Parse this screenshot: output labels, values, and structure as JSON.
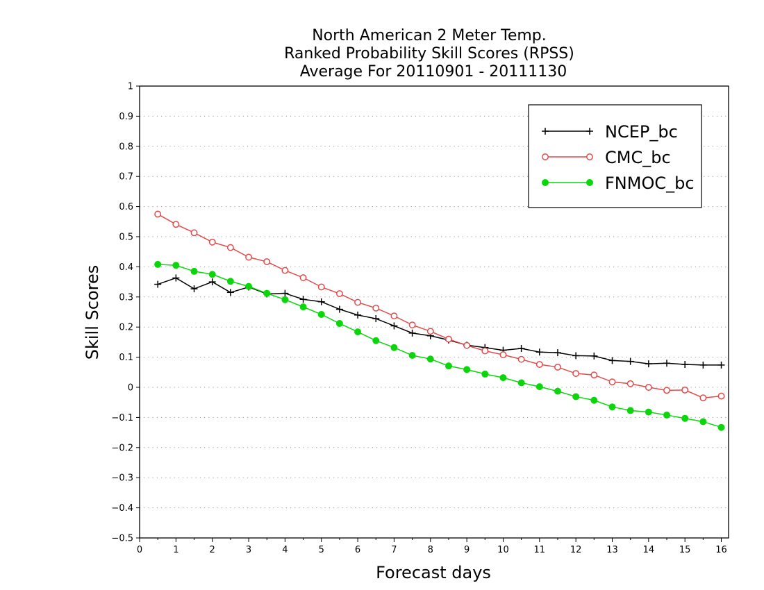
{
  "chart_data": {
    "type": "line",
    "title_lines": [
      "North American 2 Meter Temp.",
      "Ranked Probability Skill Scores (RPSS)",
      "Average For 20110901 - 20111130"
    ],
    "xlabel": "Forecast days",
    "ylabel": "Skill Scores",
    "xlim": [
      0,
      16.2
    ],
    "ylim": [
      -0.5,
      1
    ],
    "x_ticks": [
      0,
      1,
      2,
      3,
      4,
      5,
      6,
      7,
      8,
      9,
      10,
      11,
      12,
      13,
      14,
      15,
      16
    ],
    "y_ticks": [
      -0.5,
      -0.4,
      -0.3,
      -0.2,
      -0.1,
      0,
      0.1,
      0.2,
      0.3,
      0.4,
      0.5,
      0.6,
      0.7,
      0.8,
      0.9,
      1
    ],
    "y_tick_labels": [
      "−0.5",
      "−0.4",
      "−0.3",
      "−0.2",
      "−0.1",
      "0",
      "0.1",
      "0.2",
      "0.3",
      "0.4",
      "0.5",
      "0.6",
      "0.7",
      "0.8",
      "0.9",
      "1"
    ],
    "grid": "horizontal dotted",
    "legend_position": "top-right",
    "x": [
      0.5,
      1,
      1.5,
      2,
      2.5,
      3,
      3.5,
      4,
      4.5,
      5,
      5.5,
      6,
      6.5,
      7,
      7.5,
      8,
      8.5,
      9,
      9.5,
      10,
      10.5,
      11,
      11.5,
      12,
      12.5,
      13,
      13.5,
      14,
      14.5,
      15,
      15.5,
      16
    ],
    "series": [
      {
        "name": "NCEP_bc",
        "color": "#000000",
        "marker": "plus",
        "values": [
          0.342,
          0.363,
          0.327,
          0.35,
          0.315,
          0.333,
          0.31,
          0.312,
          0.292,
          0.284,
          0.259,
          0.24,
          0.228,
          0.204,
          0.18,
          0.171,
          0.157,
          0.14,
          0.132,
          0.123,
          0.129,
          0.117,
          0.115,
          0.105,
          0.104,
          0.089,
          0.086,
          0.078,
          0.08,
          0.076,
          0.074,
          0.074
        ]
      },
      {
        "name": "CMC_bc",
        "color": "#e34a4a",
        "marker": "open-circle",
        "values": [
          0.575,
          0.541,
          0.513,
          0.482,
          0.464,
          0.432,
          0.417,
          0.388,
          0.364,
          0.333,
          0.311,
          0.282,
          0.263,
          0.237,
          0.207,
          0.186,
          0.16,
          0.139,
          0.121,
          0.108,
          0.093,
          0.076,
          0.067,
          0.046,
          0.041,
          0.018,
          0.012,
          0.0,
          -0.01,
          -0.009,
          -0.035,
          -0.029
        ]
      },
      {
        "name": "FNMOC_bc",
        "color": "#0bd60b",
        "marker": "filled-circle",
        "values": [
          0.408,
          0.405,
          0.385,
          0.375,
          0.352,
          0.335,
          0.312,
          0.291,
          0.267,
          0.242,
          0.212,
          0.184,
          0.155,
          0.132,
          0.106,
          0.094,
          0.071,
          0.059,
          0.044,
          0.032,
          0.015,
          0.002,
          -0.013,
          -0.031,
          -0.043,
          -0.065,
          -0.077,
          -0.082,
          -0.092,
          -0.103,
          -0.114,
          -0.133
        ]
      }
    ]
  }
}
